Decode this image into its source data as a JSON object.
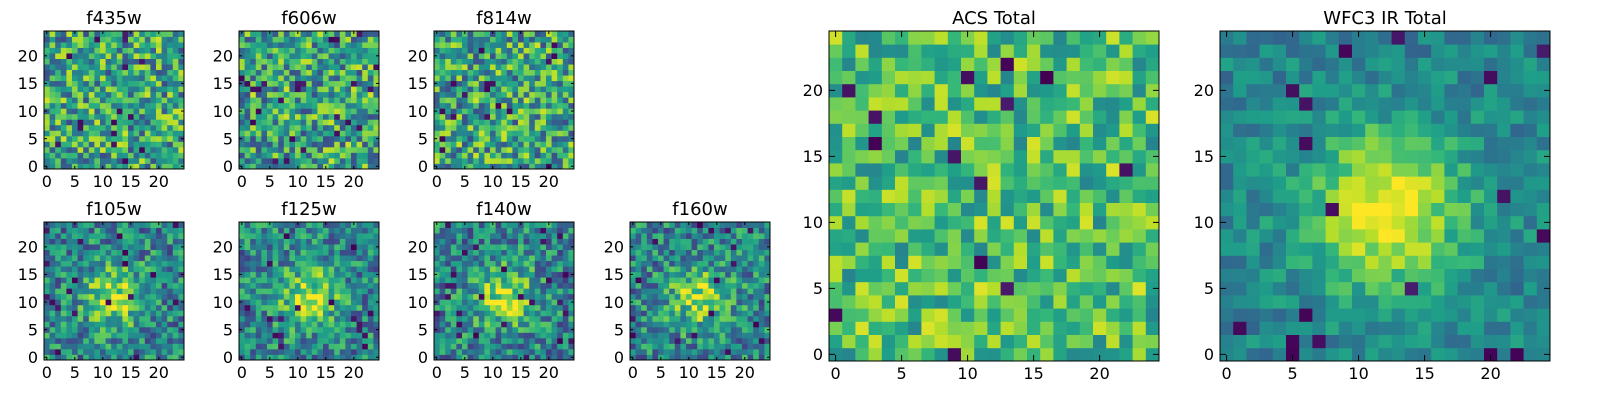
{
  "chart_data": [
    {
      "type": "heatmap",
      "title": "f435w",
      "x_ticks": [
        0,
        5,
        10,
        15,
        20
      ],
      "y_ticks": [
        0,
        5,
        10,
        15,
        20
      ],
      "xlim": [
        0,
        25
      ],
      "ylim": [
        0,
        25
      ],
      "grid": false,
      "colormap": "viridis",
      "pattern": "noise",
      "seed": 11
    },
    {
      "type": "heatmap",
      "title": "f606w",
      "x_ticks": [
        0,
        5,
        10,
        15,
        20
      ],
      "y_ticks": [
        0,
        5,
        10,
        15,
        20
      ],
      "xlim": [
        0,
        25
      ],
      "ylim": [
        0,
        25
      ],
      "grid": false,
      "colormap": "viridis",
      "pattern": "noise",
      "seed": 23
    },
    {
      "type": "heatmap",
      "title": "f814w",
      "x_ticks": [
        0,
        5,
        10,
        15,
        20
      ],
      "y_ticks": [
        0,
        5,
        10,
        15,
        20
      ],
      "xlim": [
        0,
        25
      ],
      "ylim": [
        0,
        25
      ],
      "grid": false,
      "colormap": "viridis",
      "pattern": "noise",
      "seed": 37
    },
    {
      "type": "heatmap",
      "title": "f105w",
      "x_ticks": [
        0,
        5,
        10,
        15,
        20
      ],
      "y_ticks": [
        0,
        5,
        10,
        15,
        20
      ],
      "xlim": [
        0,
        25
      ],
      "ylim": [
        0,
        25
      ],
      "grid": false,
      "colormap": "viridis",
      "pattern": "source",
      "seed": 41
    },
    {
      "type": "heatmap",
      "title": "f125w",
      "x_ticks": [
        0,
        5,
        10,
        15,
        20
      ],
      "y_ticks": [
        0,
        5,
        10,
        15,
        20
      ],
      "xlim": [
        0,
        25
      ],
      "ylim": [
        0,
        25
      ],
      "grid": false,
      "colormap": "viridis",
      "pattern": "source",
      "seed": 53
    },
    {
      "type": "heatmap",
      "title": "f140w",
      "x_ticks": [
        0,
        5,
        10,
        15,
        20
      ],
      "y_ticks": [
        0,
        5,
        10,
        15,
        20
      ],
      "xlim": [
        0,
        25
      ],
      "ylim": [
        0,
        25
      ],
      "grid": false,
      "colormap": "viridis",
      "pattern": "source",
      "seed": 67
    },
    {
      "type": "heatmap",
      "title": "f160w",
      "x_ticks": [
        0,
        5,
        10,
        15,
        20
      ],
      "y_ticks": [
        0,
        5,
        10,
        15,
        20
      ],
      "xlim": [
        0,
        25
      ],
      "ylim": [
        0,
        25
      ],
      "grid": false,
      "colormap": "viridis",
      "pattern": "source",
      "seed": 79
    },
    {
      "type": "heatmap",
      "title": "ACS Total",
      "x_ticks": [
        0,
        5,
        10,
        15,
        20
      ],
      "y_ticks": [
        0,
        5,
        10,
        15,
        20
      ],
      "xlim": [
        0,
        25
      ],
      "ylim": [
        0,
        25
      ],
      "grid": false,
      "colormap": "viridis",
      "pattern": "noise-bright",
      "seed": 97
    },
    {
      "type": "heatmap",
      "title": "WFC3 IR Total",
      "x_ticks": [
        0,
        5,
        10,
        15,
        20
      ],
      "y_ticks": [
        0,
        5,
        10,
        15,
        20
      ],
      "xlim": [
        0,
        25
      ],
      "ylim": [
        0,
        25
      ],
      "grid": false,
      "colormap": "viridis",
      "pattern": "source-strong",
      "seed": 113
    }
  ]
}
